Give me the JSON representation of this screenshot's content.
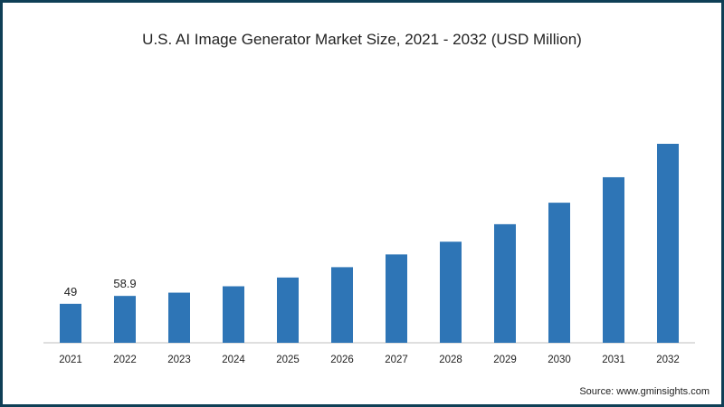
{
  "chart_data": {
    "type": "bar",
    "title": "U.S. AI Image Generator Market Size, 2021 - 2032 (USD Million)",
    "categories": [
      "2021",
      "2022",
      "2023",
      "2024",
      "2025",
      "2026",
      "2027",
      "2028",
      "2029",
      "2030",
      "2031",
      "2032"
    ],
    "values": [
      49,
      58.9,
      63,
      71,
      82,
      95,
      111,
      127,
      149,
      176,
      208,
      250
    ],
    "data_labels": [
      "49",
      "58.9",
      "",
      "",
      "",
      "",
      "",
      "",
      "",
      "",
      "",
      ""
    ],
    "xlabel": "",
    "ylabel": "",
    "ylim": [
      0,
      260
    ],
    "grid": false,
    "legend": "none",
    "bar_color": "#2e75b6"
  },
  "source": "Source: www.gminsights.com",
  "colors": {
    "frame": "#0f3f56",
    "axis": "#bfbfbf",
    "text": "#222222"
  }
}
